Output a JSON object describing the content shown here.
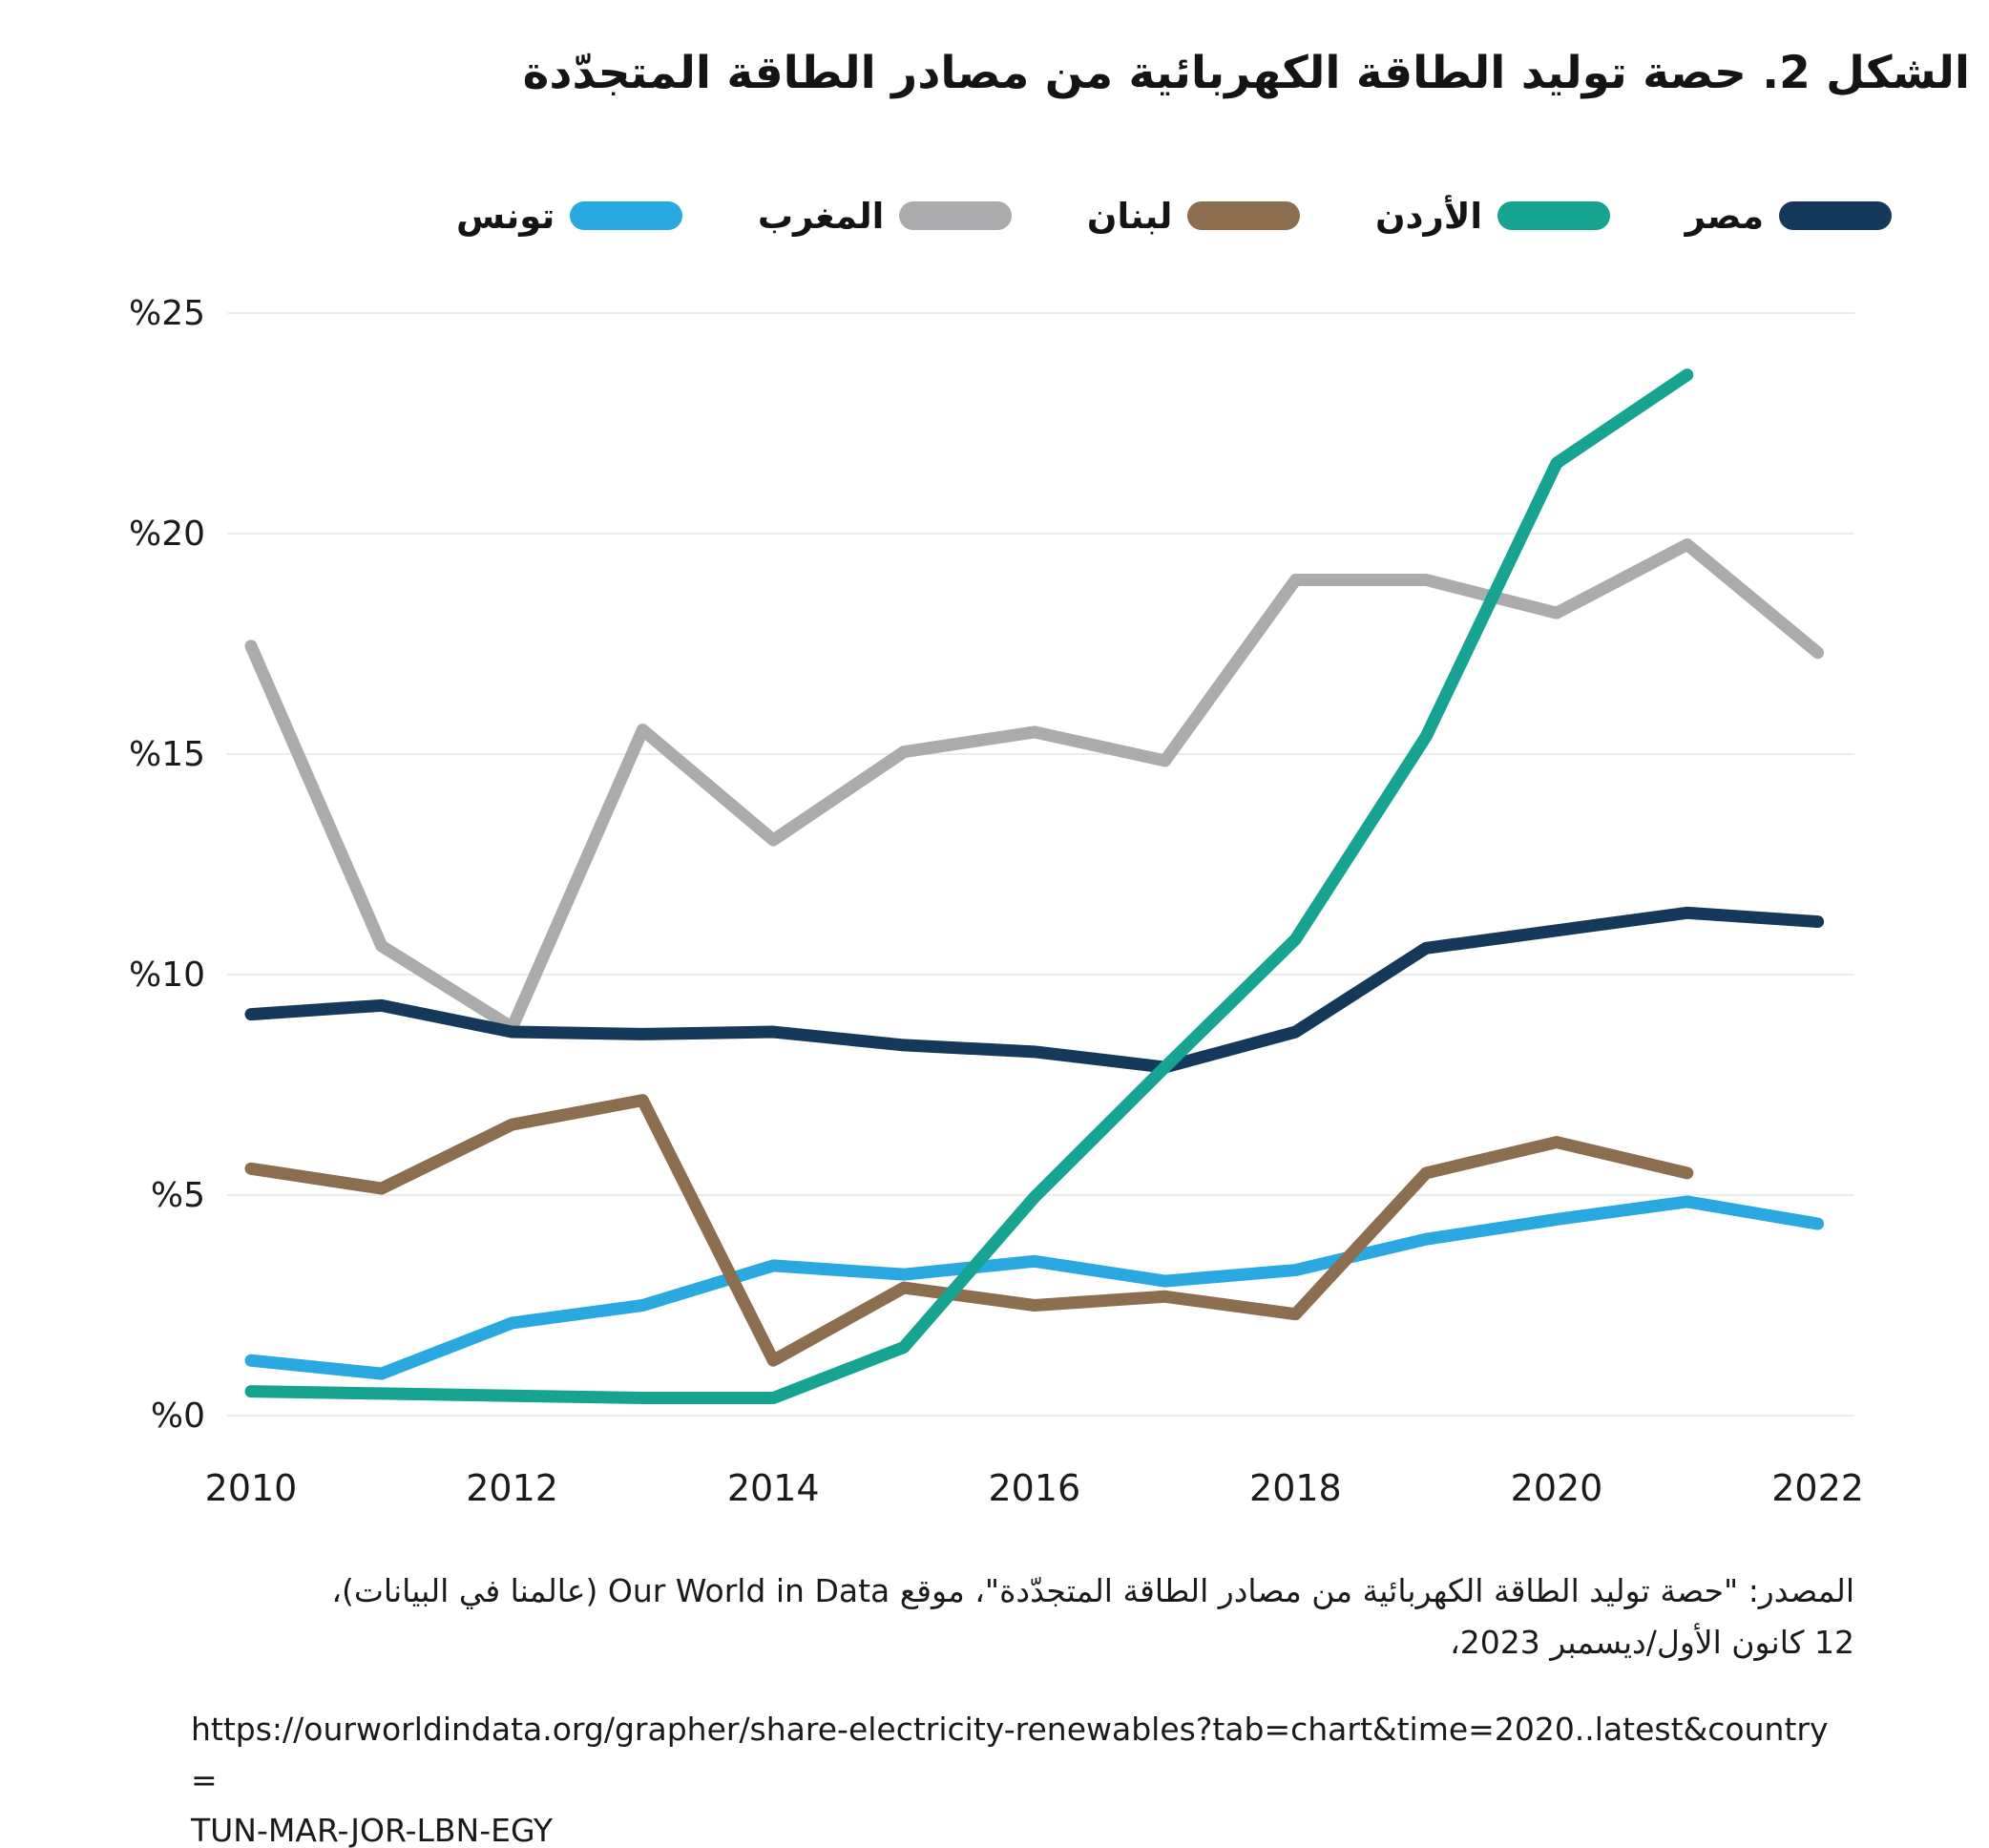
{
  "title": "الشكل 2. حصة توليد الطاقة الكهربائية من مصادر الطاقة المتجدّدة",
  "footer": {
    "source_line": "المصدر: \"حصة توليد الطاقة الكهربائية من مصادر الطاقة المتجدّدة\"، موقع Our World in Data (عالمنا في البيانات)،",
    "date_line": "12 كانون الأول/ديسمبر 2023،",
    "url_line1": "https://ourworldindata.org/grapher/share-electricity-renewables?tab=chart&time=2020..latest&country=",
    "url_line2": "TUN-MAR-JOR-LBN-EGY"
  },
  "colors": {
    "grid": "#ECECEC",
    "text": "#1A1A1A"
  },
  "chart_data": {
    "type": "line",
    "x": [
      2010,
      2011,
      2012,
      2013,
      2014,
      2015,
      2016,
      2017,
      2018,
      2019,
      2020,
      2021,
      2022
    ],
    "x_tick_years": [
      2010,
      2012,
      2014,
      2016,
      2018,
      2020,
      2022
    ],
    "y_ticks": [
      0,
      5,
      10,
      15,
      20,
      25
    ],
    "y_tick_prefix": "%",
    "ylim": [
      0,
      25
    ],
    "grid": true,
    "legend_position": "top",
    "legend_order_rtl": [
      "egypt",
      "jordan",
      "lebanon",
      "morocco",
      "tunisia"
    ],
    "draw_order": [
      "morocco",
      "tunisia",
      "lebanon",
      "egypt",
      "jordan"
    ],
    "series": [
      {
        "id": "egypt",
        "label": "مصر",
        "color": "#15395B",
        "values": [
          9.1,
          9.3,
          8.7,
          8.65,
          8.7,
          8.4,
          8.25,
          7.9,
          8.7,
          10.6,
          11.0,
          11.4,
          11.2
        ]
      },
      {
        "id": "jordan",
        "label": "الأردن",
        "color": "#16A392",
        "values": [
          0.55,
          0.5,
          0.45,
          0.4,
          0.4,
          1.55,
          4.95,
          7.9,
          10.8,
          15.4,
          21.6,
          23.6,
          null
        ]
      },
      {
        "id": "lebanon",
        "label": "لبنان",
        "color": "#8C6E4E",
        "values": [
          5.6,
          5.15,
          6.6,
          7.15,
          1.25,
          2.9,
          2.5,
          2.7,
          2.3,
          5.5,
          6.2,
          5.5,
          null
        ]
      },
      {
        "id": "morocco",
        "label": "المغرب",
        "color": "#ABABAD",
        "values": [
          17.45,
          10.65,
          8.8,
          15.55,
          13.05,
          15.05,
          15.5,
          14.85,
          18.95,
          18.95,
          18.2,
          19.75,
          17.3
        ]
      },
      {
        "id": "tunisia",
        "label": "تونس",
        "color": "#29A9E0",
        "values": [
          1.25,
          0.95,
          2.1,
          2.5,
          3.4,
          3.2,
          3.5,
          3.05,
          3.3,
          4.0,
          4.45,
          4.85,
          4.35
        ]
      }
    ]
  }
}
